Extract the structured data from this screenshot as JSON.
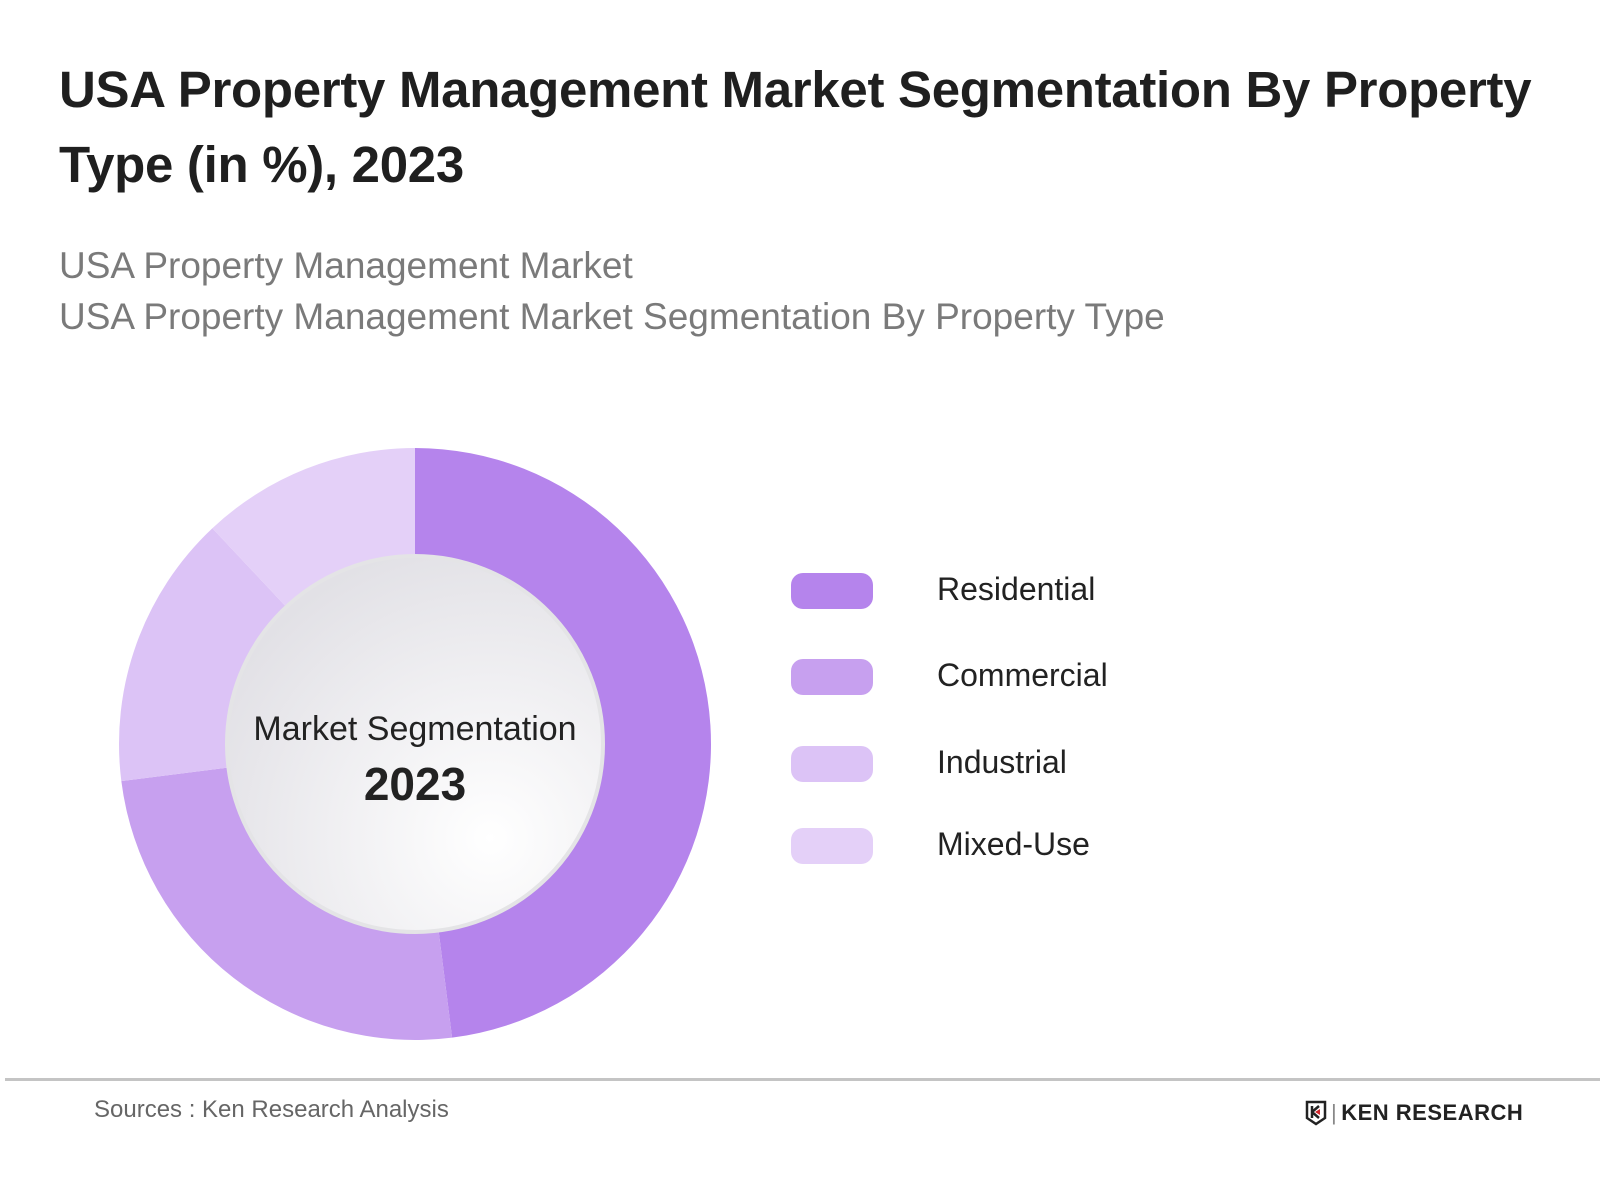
{
  "title": "USA Property Management Market Segmentation By Property Type (in %), 2023",
  "subtitle_1": "USA Property Management Market",
  "subtitle_2": "USA Property Management Market Segmentation By Property Type",
  "chart_data": {
    "type": "pie",
    "variant": "donut",
    "title": "USA Property Management Market Segmentation By Property Type (in %), 2023",
    "center_label": "Market Segmentation",
    "center_value": "2023",
    "categories": [
      "Residential",
      "Commercial",
      "Industrial",
      "Mixed-Use"
    ],
    "values": [
      48,
      25,
      15,
      12
    ],
    "colors": [
      "#b584ec",
      "#c7a0ef",
      "#dcc3f6",
      "#e4d0f8"
    ],
    "legend_position": "right",
    "data_labels": false
  },
  "footer": {
    "source": "Sources : Ken Research Analysis",
    "logo_text": "KEN RESEARCH"
  }
}
